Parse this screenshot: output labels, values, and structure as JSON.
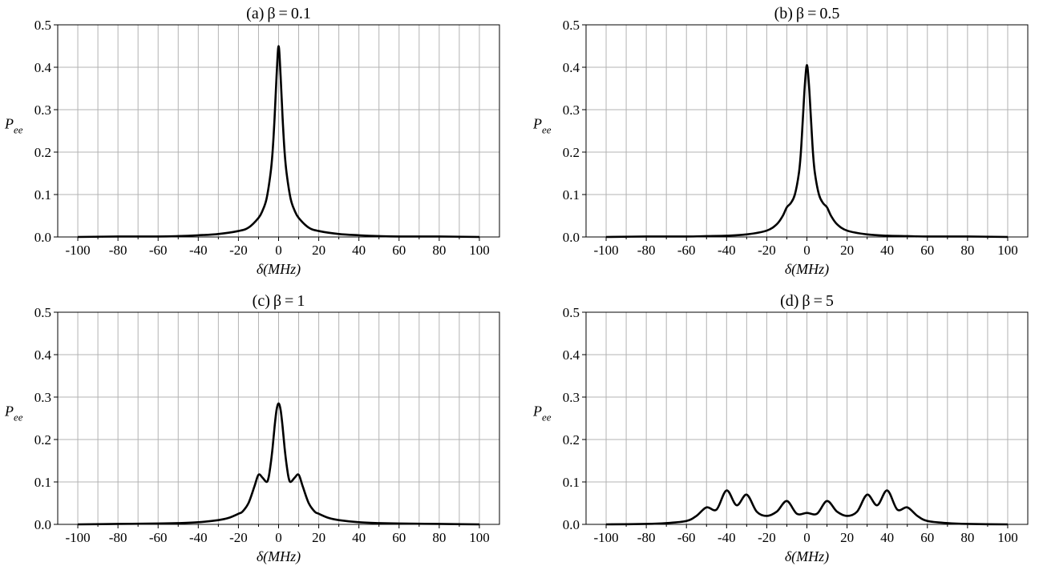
{
  "figure": {
    "panels": [
      {
        "title": "(a) β = 0.1"
      },
      {
        "title": "(b) β = 0.5"
      },
      {
        "title": "(c) β = 1"
      },
      {
        "title": "(d) β = 5"
      }
    ]
  },
  "chart_data": [
    {
      "type": "line",
      "title": "(a) β = 0.1",
      "xlabel": "δ(MHz)",
      "ylabel": "Pee",
      "xlim": [
        -110,
        110
      ],
      "ylim": [
        0.0,
        0.5
      ],
      "x_ticks": [
        "-100",
        "-80",
        "-60",
        "-40",
        "-20",
        "0",
        "20",
        "40",
        "60",
        "80",
        "100"
      ],
      "y_ticks": [
        "0.0",
        "0.1",
        "0.2",
        "0.3",
        "0.4",
        "0.5"
      ],
      "grid": true,
      "line_color": "#000000",
      "series": [
        {
          "x": [
            -100,
            -80,
            -60,
            -50,
            -40,
            -30,
            -20,
            -15,
            -10,
            -8,
            -6,
            -4,
            -3,
            -2,
            -1,
            0,
            1,
            2,
            3,
            4,
            6,
            8,
            10,
            15,
            20,
            30,
            40,
            50,
            60,
            80,
            100
          ],
          "y": [
            0.0,
            0.001,
            0.001,
            0.002,
            0.004,
            0.007,
            0.014,
            0.022,
            0.045,
            0.062,
            0.09,
            0.15,
            0.2,
            0.28,
            0.38,
            0.45,
            0.38,
            0.28,
            0.2,
            0.15,
            0.09,
            0.062,
            0.045,
            0.022,
            0.014,
            0.007,
            0.004,
            0.002,
            0.001,
            0.001,
            0.0
          ]
        }
      ]
    },
    {
      "type": "line",
      "title": "(b) β = 0.5",
      "xlabel": "δ(MHz)",
      "ylabel": "Pee",
      "xlim": [
        -110,
        110
      ],
      "ylim": [
        0.0,
        0.5
      ],
      "x_ticks": [
        "-100",
        "-80",
        "-60",
        "-40",
        "-20",
        "0",
        "20",
        "40",
        "60",
        "80",
        "100"
      ],
      "y_ticks": [
        "0.0",
        "0.1",
        "0.2",
        "0.3",
        "0.4",
        "0.5"
      ],
      "grid": true,
      "line_color": "#000000",
      "series": [
        {
          "x": [
            -100,
            -80,
            -60,
            -50,
            -40,
            -30,
            -20,
            -15,
            -12,
            -10,
            -8,
            -6,
            -4,
            -3,
            -2,
            -1,
            0,
            1,
            2,
            3,
            4,
            6,
            8,
            10,
            12,
            15,
            20,
            30,
            40,
            50,
            60,
            80,
            100
          ],
          "y": [
            0.0,
            0.001,
            0.001,
            0.002,
            0.003,
            0.006,
            0.015,
            0.03,
            0.05,
            0.07,
            0.08,
            0.1,
            0.15,
            0.2,
            0.28,
            0.36,
            0.405,
            0.36,
            0.28,
            0.2,
            0.15,
            0.1,
            0.08,
            0.07,
            0.05,
            0.03,
            0.015,
            0.006,
            0.003,
            0.002,
            0.001,
            0.001,
            0.0
          ]
        }
      ]
    },
    {
      "type": "line",
      "title": "(c) β = 1",
      "xlabel": "δ(MHz)",
      "ylabel": "Pee",
      "xlim": [
        -110,
        110
      ],
      "ylim": [
        0.0,
        0.5
      ],
      "x_ticks": [
        "-100",
        "-80",
        "-60",
        "-40",
        "-20",
        "0",
        "20",
        "40",
        "60",
        "80",
        "100"
      ],
      "y_ticks": [
        "0.0",
        "0.1",
        "0.2",
        "0.3",
        "0.4",
        "0.5"
      ],
      "grid": true,
      "line_color": "#000000",
      "series": [
        {
          "x": [
            -100,
            -80,
            -60,
            -50,
            -40,
            -30,
            -25,
            -20,
            -18,
            -15,
            -12,
            -10,
            -8,
            -6,
            -5,
            -4,
            -3,
            -2,
            -1,
            0,
            1,
            2,
            3,
            4,
            5,
            6,
            8,
            10,
            12,
            15,
            18,
            20,
            25,
            30,
            40,
            50,
            60,
            80,
            100
          ],
          "y": [
            0.0,
            0.001,
            0.002,
            0.003,
            0.005,
            0.01,
            0.015,
            0.025,
            0.03,
            0.05,
            0.09,
            0.117,
            0.11,
            0.1,
            0.11,
            0.14,
            0.18,
            0.23,
            0.27,
            0.285,
            0.27,
            0.23,
            0.18,
            0.14,
            0.11,
            0.1,
            0.11,
            0.117,
            0.09,
            0.05,
            0.03,
            0.025,
            0.015,
            0.01,
            0.005,
            0.003,
            0.002,
            0.001,
            0.0
          ]
        }
      ]
    },
    {
      "type": "line",
      "title": "(d) β = 5",
      "xlabel": "δ(MHz)",
      "ylabel": "Pee",
      "xlim": [
        -110,
        110
      ],
      "ylim": [
        0.0,
        0.5
      ],
      "x_ticks": [
        "-100",
        "-80",
        "-60",
        "-40",
        "-20",
        "0",
        "20",
        "40",
        "60",
        "80",
        "100"
      ],
      "y_ticks": [
        "0.0",
        "0.1",
        "0.2",
        "0.3",
        "0.4",
        "0.5"
      ],
      "grid": true,
      "line_color": "#000000",
      "series": [
        {
          "x": [
            -100,
            -80,
            -70,
            -60,
            -55,
            -50,
            -45,
            -40,
            -35,
            -30,
            -25,
            -20,
            -15,
            -10,
            -5,
            0,
            5,
            10,
            15,
            20,
            25,
            30,
            35,
            40,
            45,
            50,
            55,
            60,
            70,
            80,
            100
          ],
          "y": [
            0.0,
            0.001,
            0.003,
            0.008,
            0.02,
            0.04,
            0.035,
            0.08,
            0.045,
            0.07,
            0.03,
            0.02,
            0.03,
            0.055,
            0.025,
            0.027,
            0.025,
            0.055,
            0.03,
            0.02,
            0.03,
            0.07,
            0.045,
            0.08,
            0.035,
            0.04,
            0.02,
            0.008,
            0.003,
            0.001,
            0.0
          ]
        }
      ]
    }
  ]
}
